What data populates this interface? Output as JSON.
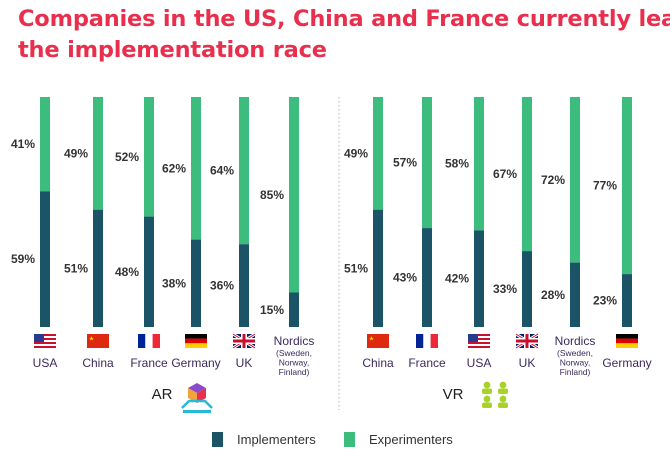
{
  "title_lines": [
    "Companies in the US, China and France currently lead",
    "the implementation race"
  ],
  "colors": {
    "title": "#e8304e",
    "implementers": "#1c5467",
    "experimenters": "#3dbd7d",
    "label": "#3b2a5c",
    "value": "#333333"
  },
  "legend": [
    {
      "name": "Implementers",
      "color": "#1c5467"
    },
    {
      "name": "Experimenters",
      "color": "#3dbd7d"
    }
  ],
  "chart_data": [
    {
      "type": "bar",
      "stacked": true,
      "group_label": "AR",
      "icon": "ar-headset-icon",
      "categories": [
        "USA",
        "China",
        "France",
        "Germany",
        "UK",
        "Nordics"
      ],
      "category_notes": [
        "",
        "",
        "",
        "",
        "",
        "(Sweden,\nNorway,\nFinland)"
      ],
      "flags": [
        "us-flag",
        "china-flag",
        "france-flag",
        "germany-flag",
        "uk-flag",
        ""
      ],
      "series": [
        {
          "name": "Implementers",
          "values": [
            59,
            51,
            48,
            38,
            36,
            15
          ]
        },
        {
          "name": "Experimenters",
          "values": [
            41,
            49,
            52,
            62,
            64,
            85
          ]
        }
      ],
      "ylim": [
        0,
        100
      ]
    },
    {
      "type": "bar",
      "stacked": true,
      "group_label": "VR",
      "icon": "vr-users-icon",
      "categories": [
        "China",
        "France",
        "USA",
        "UK",
        "Nordics",
        "Germany"
      ],
      "category_notes": [
        "",
        "",
        "",
        "",
        "(Sweden,\nNorway,\nFinland)",
        ""
      ],
      "flags": [
        "china-flag",
        "france-flag",
        "us-flag",
        "uk-flag",
        "",
        "germany-flag"
      ],
      "series": [
        {
          "name": "Implementers",
          "values": [
            51,
            43,
            42,
            33,
            28,
            23
          ]
        },
        {
          "name": "Experimenters",
          "values": [
            49,
            57,
            58,
            67,
            72,
            77
          ]
        }
      ],
      "ylim": [
        0,
        100
      ]
    }
  ]
}
